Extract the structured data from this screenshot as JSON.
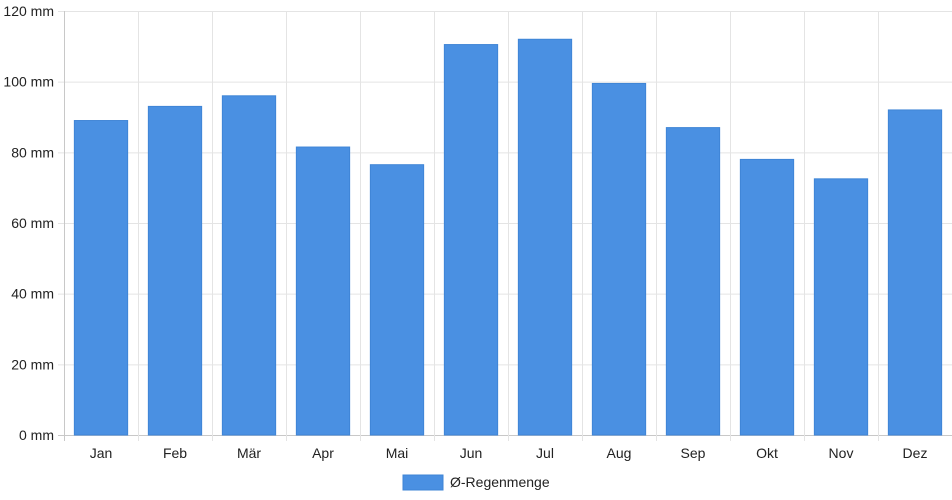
{
  "chart_data": {
    "type": "bar",
    "categories": [
      "Jan",
      "Feb",
      "Mär",
      "Apr",
      "Mai",
      "Jun",
      "Jul",
      "Aug",
      "Sep",
      "Okt",
      "Nov",
      "Dez"
    ],
    "series": [
      {
        "name": "Ø-Regenmenge",
        "values": [
          89,
          93,
          96,
          81.5,
          76.5,
          110.5,
          112,
          99.5,
          87,
          78,
          72.5,
          92
        ],
        "color": "#4a90e2"
      }
    ],
    "y_ticks": [
      "0 mm",
      "20 mm",
      "40 mm",
      "60 mm",
      "80 mm",
      "100 mm",
      "120 mm"
    ],
    "ylim": [
      0,
      120
    ],
    "y_unit": "mm",
    "grid": true,
    "legend_position": "bottom"
  }
}
